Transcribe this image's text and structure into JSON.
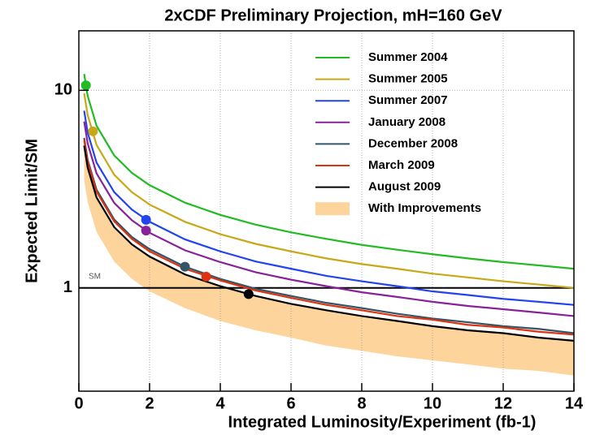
{
  "chart_data": {
    "type": "line",
    "title": "2xCDF Preliminary Projection, mH=160 GeV",
    "xlabel": "Integrated Luminosity/Experiment (fb-1)",
    "ylabel": "Expected Limit/SM",
    "log_y": true,
    "grid": true,
    "legend": "upper right",
    "xlim": [
      0,
      14
    ],
    "ylim": [
      0.3,
      20
    ],
    "xticks": [
      0,
      2,
      4,
      6,
      8,
      10,
      12,
      14
    ],
    "yticks": [
      1,
      10
    ],
    "reference_line": {
      "value": 1,
      "label": "SM"
    },
    "x": [
      0.15,
      0.25,
      0.5,
      1,
      1.5,
      2,
      3,
      4,
      5,
      6,
      7,
      8,
      9,
      10,
      11,
      12,
      13,
      14
    ],
    "series": [
      {
        "name": "Summer 2004",
        "color": "#22bb22",
        "marker_x": 0.2,
        "marker_y": 10.6,
        "values": [
          12.09,
          9.36,
          6.62,
          4.68,
          3.82,
          3.31,
          2.7,
          2.34,
          2.09,
          1.91,
          1.77,
          1.65,
          1.56,
          1.48,
          1.41,
          1.35,
          1.3,
          1.25
        ]
      },
      {
        "name": "Summer 2005",
        "color": "#c8a818",
        "marker_x": 0.4,
        "marker_y": 6.2,
        "values": [
          9.66,
          7.48,
          5.29,
          3.74,
          3.05,
          2.64,
          2.16,
          1.87,
          1.67,
          1.53,
          1.41,
          1.32,
          1.25,
          1.18,
          1.13,
          1.08,
          1.04,
          1.0
        ]
      },
      {
        "name": "Summer 2007",
        "color": "#2244ee",
        "marker_x": 1.9,
        "marker_y": 2.21,
        "values": [
          7.88,
          6.1,
          4.31,
          3.05,
          2.49,
          2.16,
          1.76,
          1.53,
          1.36,
          1.25,
          1.15,
          1.08,
          1.02,
          0.96,
          0.92,
          0.88,
          0.85,
          0.82
        ]
      },
      {
        "name": "January 2008",
        "color": "#882299",
        "marker_x": 1.9,
        "marker_y": 1.95,
        "values": [
          6.95,
          5.38,
          3.8,
          2.69,
          2.2,
          1.9,
          1.55,
          1.35,
          1.2,
          1.1,
          1.02,
          0.95,
          0.9,
          0.85,
          0.81,
          0.78,
          0.75,
          0.72
        ]
      },
      {
        "name": "December 2008",
        "color": "#335566",
        "marker_x": 3.0,
        "marker_y": 1.28,
        "values": [
          5.74,
          4.44,
          3.14,
          2.22,
          1.81,
          1.57,
          1.28,
          1.11,
          0.99,
          0.91,
          0.84,
          0.79,
          0.74,
          0.7,
          0.67,
          0.64,
          0.62,
          0.59
        ]
      },
      {
        "name": "March 2009",
        "color": "#dd3311",
        "marker_x": 3.6,
        "marker_y": 1.14,
        "values": [
          5.61,
          4.34,
          3.07,
          2.17,
          1.77,
          1.53,
          1.25,
          1.09,
          0.97,
          0.89,
          0.82,
          0.77,
          0.72,
          0.69,
          0.65,
          0.63,
          0.6,
          0.58
        ]
      },
      {
        "name": "August 2009",
        "color": "#000000",
        "marker_x": 4.8,
        "marker_y": 0.93,
        "values": [
          5.25,
          4.06,
          2.87,
          2.03,
          1.66,
          1.44,
          1.17,
          1.02,
          0.91,
          0.83,
          0.77,
          0.72,
          0.68,
          0.64,
          0.61,
          0.59,
          0.56,
          0.54
        ]
      }
    ],
    "band": {
      "name": "With Improvements",
      "color": "#fcd49c",
      "upper": [
        5.25,
        4.06,
        2.87,
        2.03,
        1.66,
        1.44,
        1.17,
        1.02,
        0.91,
        0.83,
        0.77,
        0.72,
        0.68,
        0.64,
        0.61,
        0.59,
        0.56,
        0.54
      ],
      "lower": [
        3.51,
        2.72,
        1.92,
        1.36,
        1.11,
        0.96,
        0.79,
        0.68,
        0.61,
        0.56,
        0.51,
        0.48,
        0.45,
        0.43,
        0.41,
        0.39,
        0.38,
        0.36
      ]
    }
  }
}
